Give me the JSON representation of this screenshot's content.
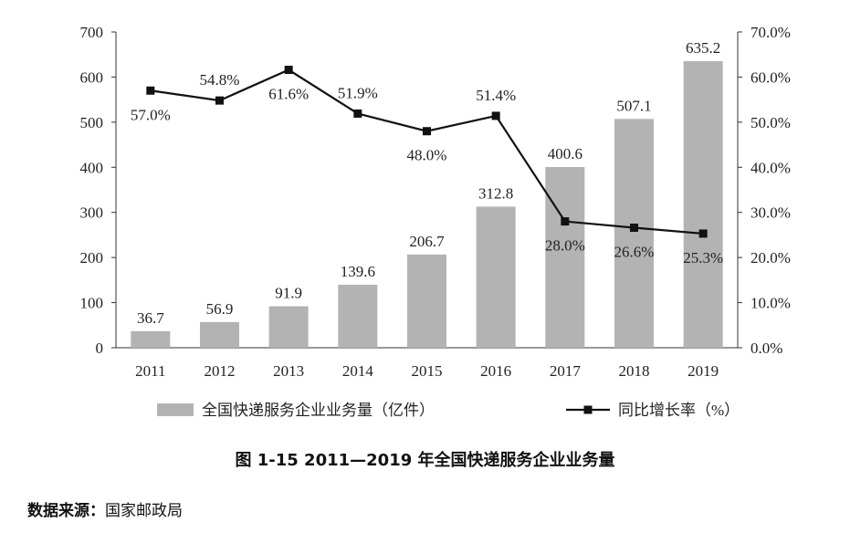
{
  "chart_data": {
    "type": "bar",
    "categories": [
      "2011",
      "2012",
      "2013",
      "2014",
      "2015",
      "2016",
      "2017",
      "2018",
      "2019"
    ],
    "series": [
      {
        "name": "全国快递服务企业业务量（亿件）",
        "type": "bar",
        "axis": "left",
        "values": [
          36.7,
          56.9,
          91.9,
          139.6,
          206.7,
          312.8,
          400.6,
          507.1,
          635.2
        ],
        "labels": [
          "36.7",
          "56.9",
          "91.9",
          "139.6",
          "206.7",
          "312.8",
          "400.6",
          "507.1",
          "635.2"
        ],
        "color": "#b3b3b3"
      },
      {
        "name": "同比增长率（%）",
        "type": "line",
        "axis": "right",
        "values": [
          57.0,
          54.8,
          61.6,
          51.9,
          48.0,
          51.4,
          28.0,
          26.6,
          25.3
        ],
        "labels": [
          "57.0%",
          "54.8%",
          "61.6%",
          "51.9%",
          "48.0%",
          "51.4%",
          "28.0%",
          "26.6%",
          "25.3%"
        ],
        "color": "#111111"
      }
    ],
    "left_axis": {
      "min": 0,
      "max": 700,
      "ticks": [
        "0",
        "100",
        "200",
        "300",
        "400",
        "500",
        "600",
        "700"
      ]
    },
    "right_axis": {
      "min": 0,
      "max": 70,
      "ticks": [
        "0.0%",
        "10.0%",
        "20.0%",
        "30.0%",
        "40.0%",
        "50.0%",
        "60.0%",
        "70.0%"
      ]
    },
    "grid": false,
    "legend_position": "bottom"
  },
  "caption": "图 1-15    2011—2019 年全国快递服务企业业务量",
  "source": {
    "label": "数据来源：",
    "value": "国家邮政局"
  }
}
